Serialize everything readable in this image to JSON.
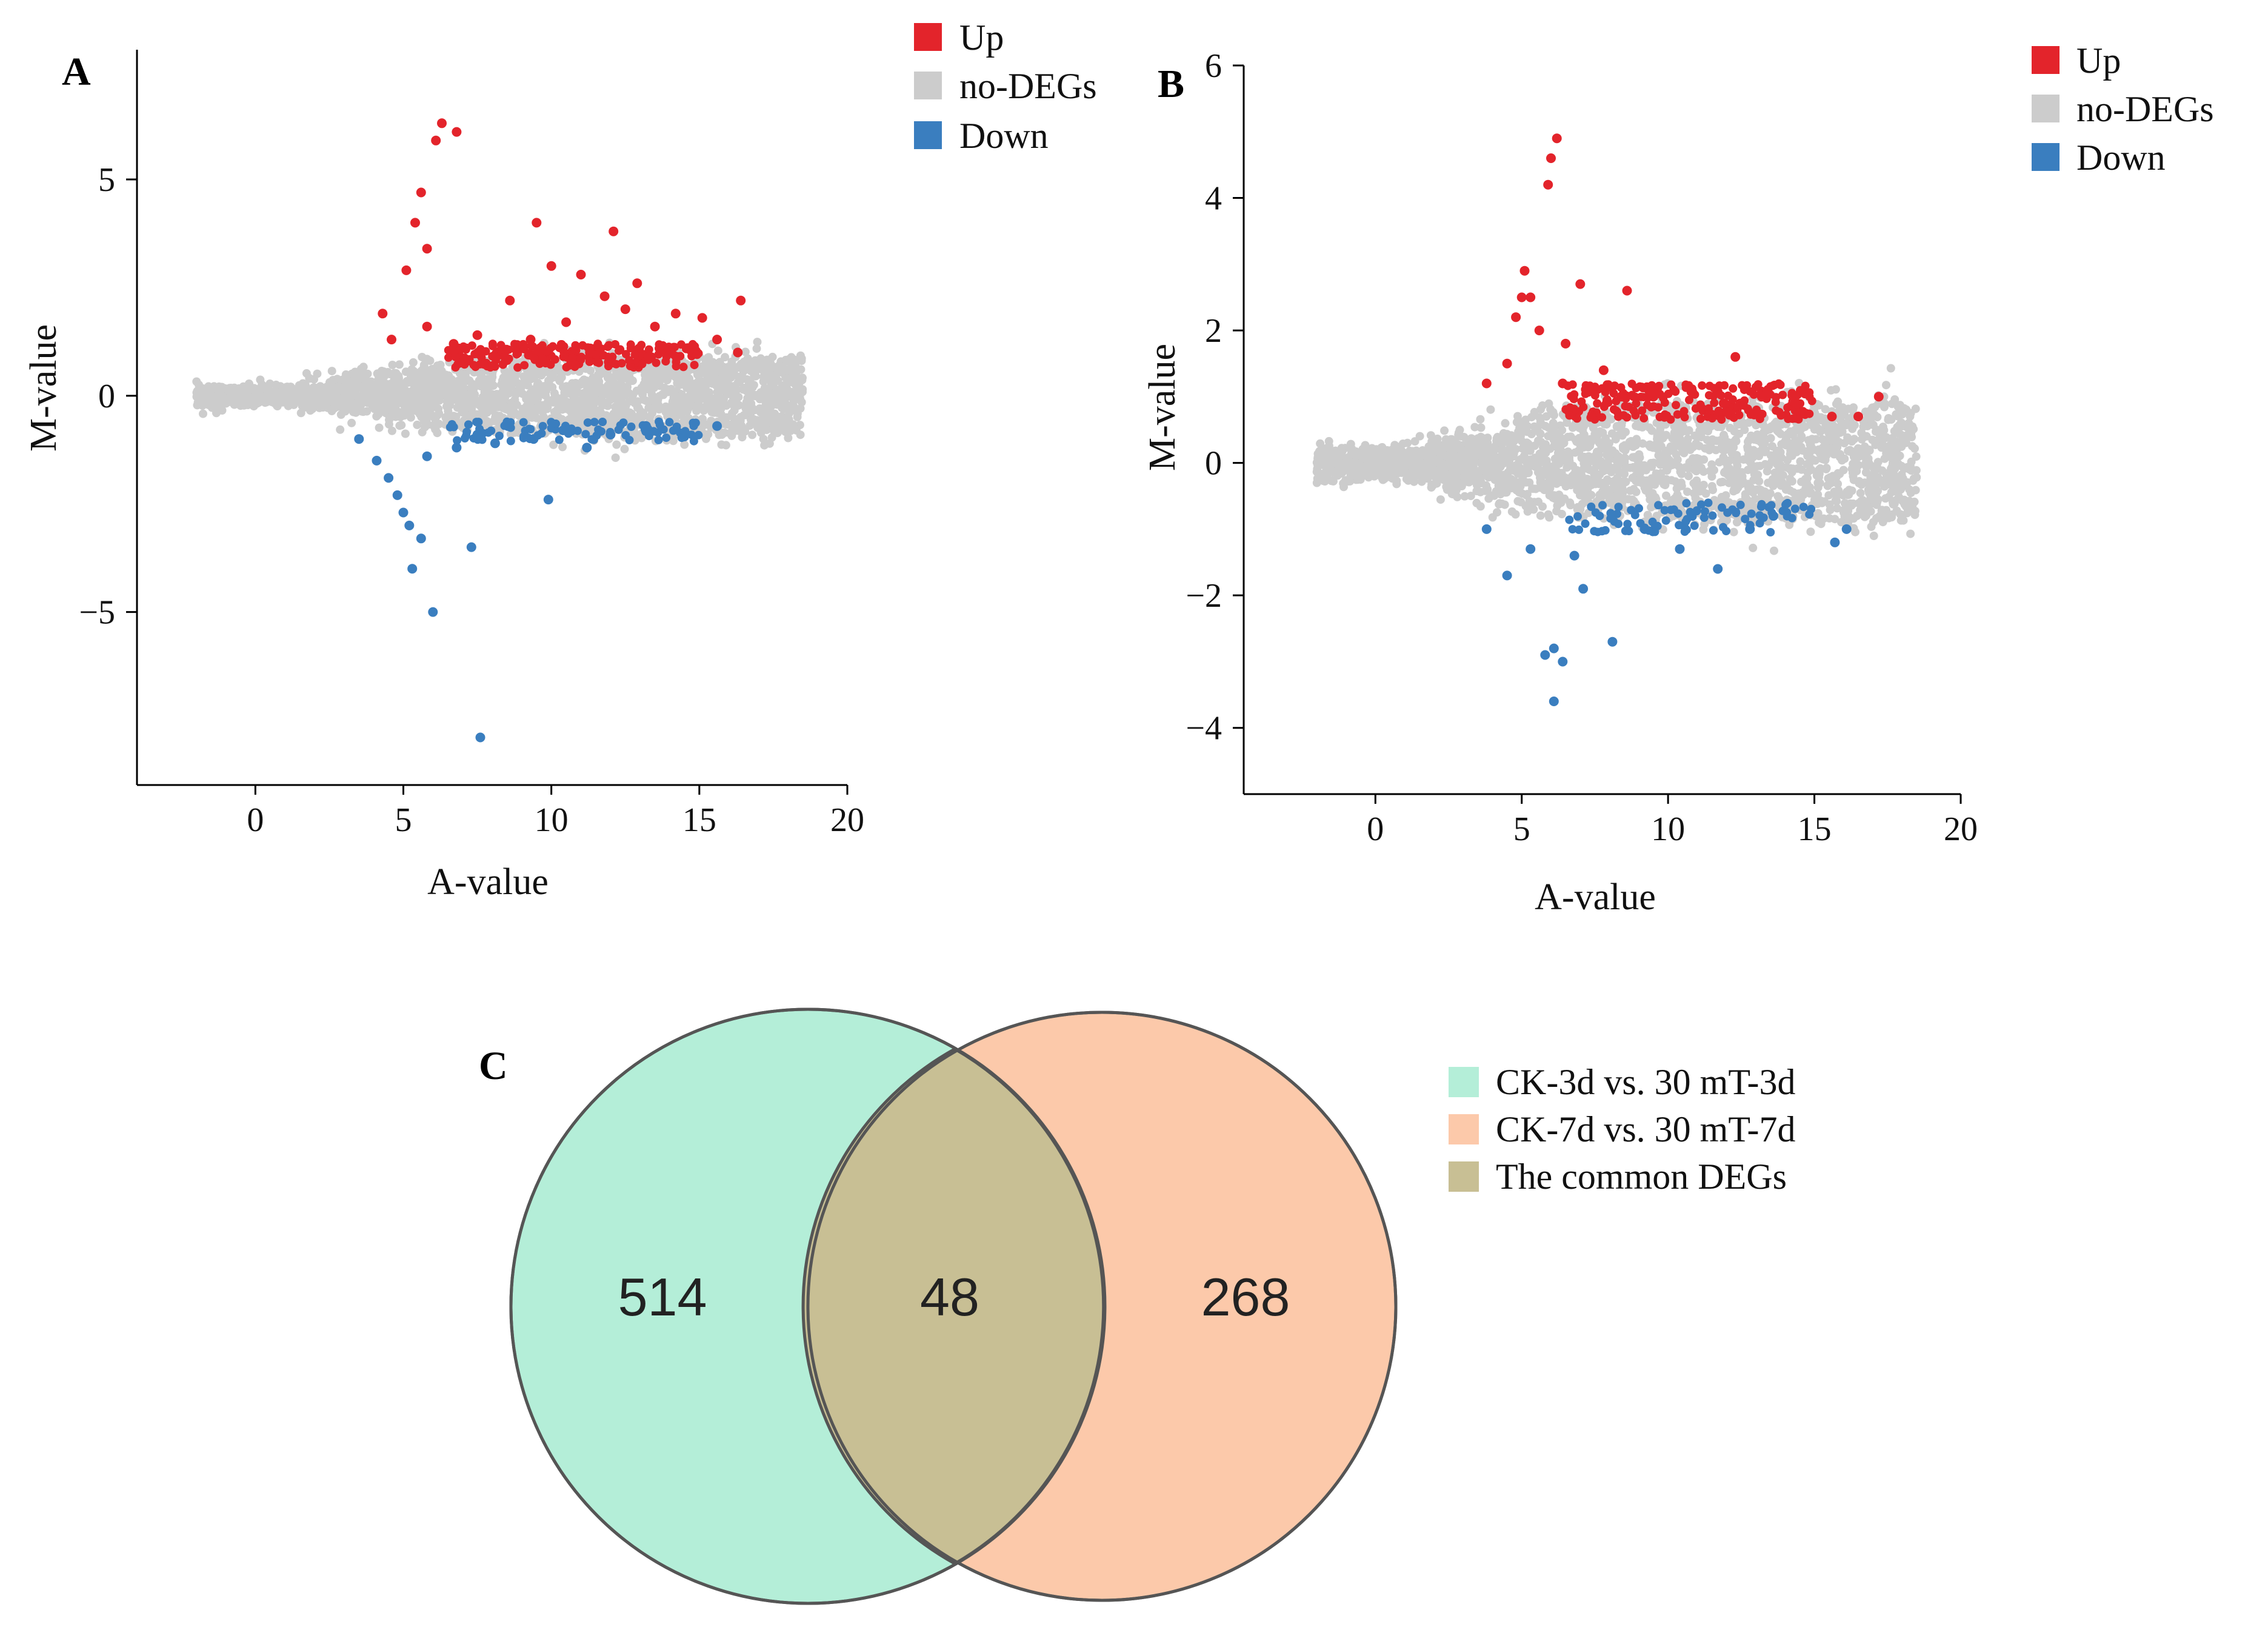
{
  "colors": {
    "up": "#e3242b",
    "nodeg": "#cccccc",
    "down": "#3a7ebf",
    "set1": "#b4eed8",
    "set2": "#fcc9aa",
    "common": "#c8bf94"
  },
  "panels": [
    {
      "label": "A",
      "xlabel": "A-value",
      "ylabel": "M-value",
      "xlim": [
        -4,
        20
      ],
      "ylim": [
        -9,
        8
      ],
      "xticks": [
        0,
        5,
        10,
        15,
        20
      ],
      "yticks": [
        5,
        0,
        -5
      ],
      "ytick_labels": [
        "5",
        "0",
        "−5"
      ],
      "legend": [
        {
          "label": "Up",
          "color_key": "up"
        },
        {
          "label": "no-DEGs",
          "color_key": "nodeg"
        },
        {
          "label": "Down",
          "color_key": "down"
        }
      ]
    },
    {
      "label": "B",
      "xlabel": "A-value",
      "ylabel": "M-value",
      "xlim": [
        -4.5,
        20
      ],
      "ylim": [
        -5,
        6
      ],
      "xticks": [
        0,
        5,
        10,
        15,
        20
      ],
      "yticks": [
        6,
        4,
        2,
        0,
        -2,
        -4
      ],
      "ytick_labels": [
        "6",
        "4",
        "2",
        "0",
        "−2",
        "−4"
      ],
      "legend": [
        {
          "label": "Up",
          "color_key": "up"
        },
        {
          "label": "no-DEGs",
          "color_key": "nodeg"
        },
        {
          "label": "Down",
          "color_key": "down"
        }
      ]
    }
  ],
  "chart_data": [
    {
      "type": "scatter",
      "title": "A",
      "xlabel": "A-value",
      "ylabel": "M-value",
      "xlim": [
        -4,
        20
      ],
      "ylim": [
        -9,
        8
      ],
      "series": [
        {
          "name": "Up",
          "points": [
            [
              6.3,
              6.3
            ],
            [
              6.8,
              6.1
            ],
            [
              6.1,
              5.9
            ],
            [
              5.6,
              4.7
            ],
            [
              5.4,
              4.0
            ],
            [
              5.8,
              3.4
            ],
            [
              5.1,
              2.9
            ],
            [
              9.5,
              4.0
            ],
            [
              12.1,
              3.8
            ],
            [
              4.3,
              1.9
            ],
            [
              4.6,
              1.3
            ],
            [
              5.8,
              1.6
            ],
            [
              6.7,
              1.2
            ],
            [
              7.5,
              1.4
            ],
            [
              8.6,
              2.2
            ],
            [
              10.0,
              3.0
            ],
            [
              11.0,
              2.8
            ],
            [
              12.5,
              2.0
            ],
            [
              12.9,
              2.6
            ],
            [
              13.5,
              1.6
            ],
            [
              14.2,
              1.9
            ],
            [
              15.1,
              1.8
            ],
            [
              15.6,
              1.3
            ],
            [
              16.4,
              2.2
            ],
            [
              16.3,
              1.0
            ],
            [
              14.6,
              1.1
            ],
            [
              11.8,
              2.3
            ],
            [
              10.5,
              1.7
            ],
            [
              9.3,
              1.3
            ],
            [
              8.1,
              0.9
            ],
            [
              13.3,
              0.9
            ],
            [
              11.3,
              1.0
            ]
          ]
        },
        {
          "name": "no-DEGs",
          "description": "dense cloud around M = 0 over A = -2 to 18"
        },
        {
          "name": "Down",
          "points": [
            [
              3.5,
              -1.0
            ],
            [
              4.1,
              -1.5
            ],
            [
              4.5,
              -1.9
            ],
            [
              4.8,
              -2.3
            ],
            [
              5.0,
              -2.7
            ],
            [
              5.2,
              -3.0
            ],
            [
              5.6,
              -3.3
            ],
            [
              5.3,
              -4.0
            ],
            [
              6.0,
              -5.0
            ],
            [
              7.3,
              -3.5
            ],
            [
              7.6,
              -7.9
            ],
            [
              9.9,
              -2.4
            ],
            [
              5.8,
              -1.4
            ],
            [
              6.8,
              -1.2
            ],
            [
              8.1,
              -1.1
            ],
            [
              9.4,
              -1.0
            ],
            [
              11.2,
              -1.2
            ],
            [
              12.0,
              -0.9
            ],
            [
              13.2,
              -0.7
            ],
            [
              15.6,
              -0.7
            ],
            [
              7.5,
              -0.9
            ],
            [
              10.4,
              -0.8
            ]
          ]
        }
      ]
    },
    {
      "type": "scatter",
      "title": "B",
      "xlabel": "A-value",
      "ylabel": "M-value",
      "xlim": [
        -4.5,
        20
      ],
      "ylim": [
        -5,
        6
      ],
      "series": [
        {
          "name": "Up",
          "points": [
            [
              6.2,
              4.9
            ],
            [
              6.0,
              4.6
            ],
            [
              5.9,
              4.2
            ],
            [
              5.1,
              2.9
            ],
            [
              5.0,
              2.5
            ],
            [
              5.3,
              2.5
            ],
            [
              4.8,
              2.2
            ],
            [
              5.6,
              2.0
            ],
            [
              6.5,
              1.8
            ],
            [
              4.5,
              1.5
            ],
            [
              3.8,
              1.2
            ],
            [
              7.0,
              2.7
            ],
            [
              8.6,
              2.6
            ],
            [
              6.4,
              1.2
            ],
            [
              7.8,
              1.4
            ],
            [
              8.4,
              1.0
            ],
            [
              9.5,
              1.0
            ],
            [
              10.8,
              1.1
            ],
            [
              11.9,
              0.9
            ],
            [
              12.3,
              1.6
            ],
            [
              13.2,
              1.0
            ],
            [
              14.4,
              0.9
            ],
            [
              15.6,
              0.7
            ],
            [
              16.5,
              0.7
            ],
            [
              17.2,
              1.0
            ]
          ]
        },
        {
          "name": "no-DEGs",
          "description": "dense cloud around M = 0 over A = -2 to 19"
        },
        {
          "name": "Down",
          "points": [
            [
              5.8,
              -2.9
            ],
            [
              6.1,
              -2.8
            ],
            [
              6.4,
              -3.0
            ],
            [
              6.1,
              -3.6
            ],
            [
              8.1,
              -2.7
            ],
            [
              3.8,
              -1.0
            ],
            [
              4.5,
              -1.7
            ],
            [
              5.3,
              -1.3
            ],
            [
              6.8,
              -1.4
            ],
            [
              7.1,
              -1.9
            ],
            [
              9.2,
              -1.0
            ],
            [
              10.4,
              -1.3
            ],
            [
              11.7,
              -1.6
            ],
            [
              12.8,
              -1.0
            ],
            [
              13.6,
              -0.8
            ],
            [
              15.7,
              -1.2
            ],
            [
              16.1,
              -1.0
            ]
          ]
        }
      ]
    },
    {
      "type": "venn",
      "title": "C",
      "sets": [
        {
          "name": "CK-3d vs. 30 mT-3d",
          "only": 514
        },
        {
          "name": "CK-7d vs. 30 mT-7d",
          "only": 268
        }
      ],
      "intersection": {
        "name": "The common DEGs",
        "value": 48
      }
    }
  ],
  "venn": {
    "label": "C",
    "left_count": "514",
    "common_count": "48",
    "right_count": "268",
    "legend": [
      {
        "label": "CK-3d vs. 30 mT-3d",
        "color_key": "set1"
      },
      {
        "label": "CK-7d vs. 30 mT-7d",
        "color_key": "set2"
      },
      {
        "label": "The common DEGs",
        "color_key": "common"
      }
    ]
  }
}
